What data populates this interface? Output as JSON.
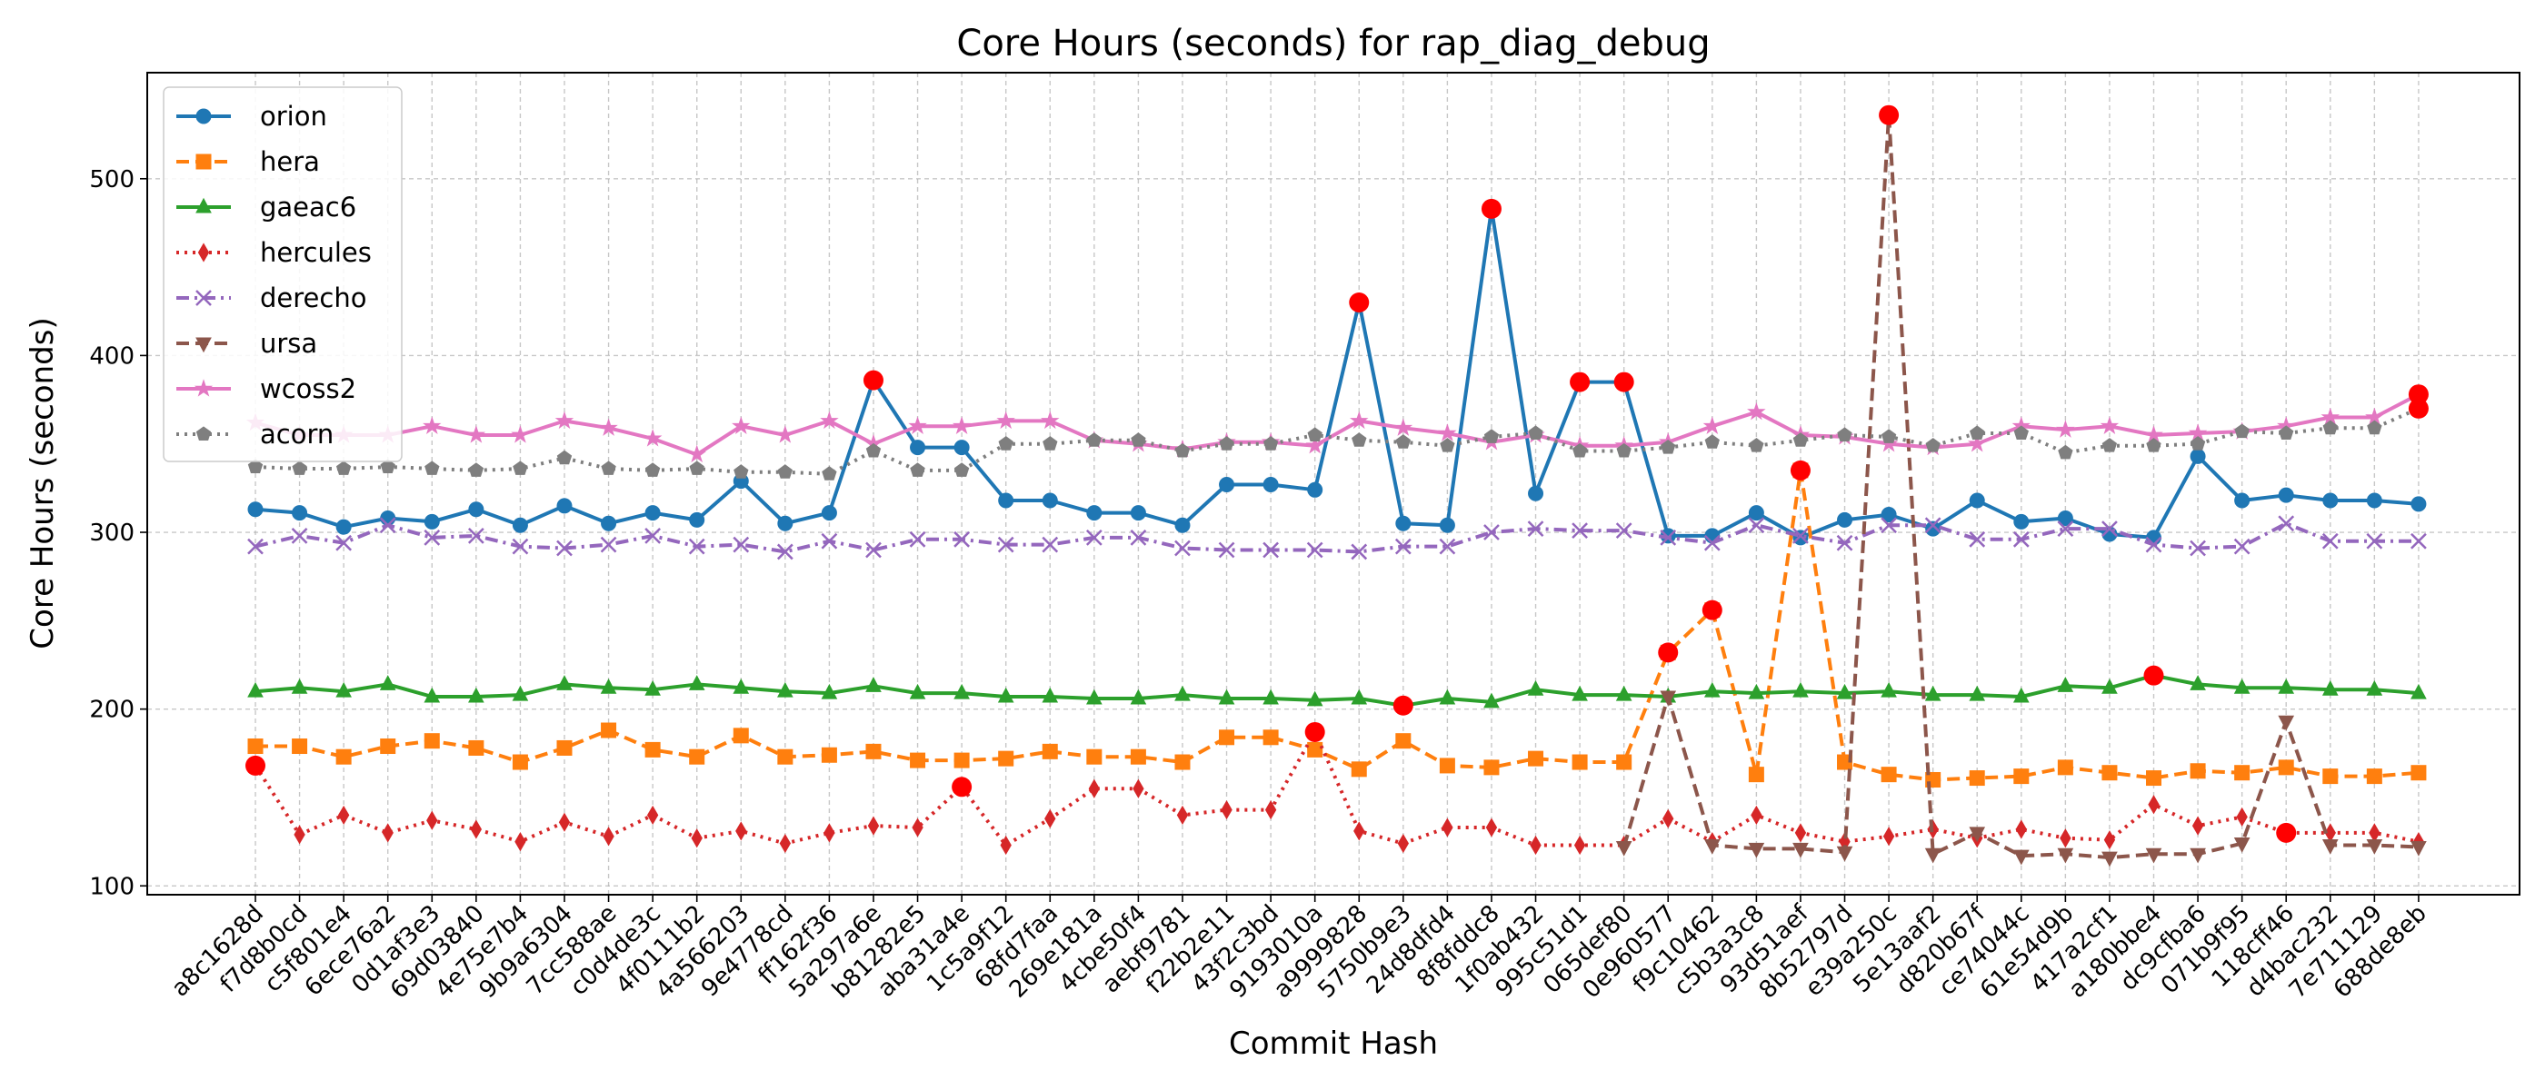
{
  "chart_data": {
    "type": "line",
    "title": "Core Hours (seconds) for rap_diag_debug",
    "xlabel": "Commit Hash",
    "ylabel": "Core Hours (seconds)",
    "ylim": [
      95,
      560
    ],
    "yticks": [
      100,
      200,
      300,
      400,
      500
    ],
    "grid": true,
    "legend_position": "top-left",
    "outlier_color": "#ff0000",
    "categories": [
      "a8c1628d",
      "f7d8b0cd",
      "c5f801e4",
      "6ece76a2",
      "0d1af3e3",
      "69d03840",
      "4e75e7b4",
      "9b9a6304",
      "7cc588ae",
      "c0d4de3c",
      "4f0111b2",
      "4a566203",
      "9e4778cd",
      "ff162f36",
      "5a297a6e",
      "b81282e5",
      "aba31a4e",
      "1c5a9f12",
      "68fd7faa",
      "269e181a",
      "4cbe50f4",
      "aebf9781",
      "f22b2e11",
      "43f2c3bd",
      "9193010a",
      "a9999828",
      "5750b9e3",
      "24d8dfd4",
      "8f8fddc8",
      "1f0ab432",
      "995c51d1",
      "065def80",
      "0e960577",
      "f9c10462",
      "c5b3a3c8",
      "93d51aef",
      "8b52797d",
      "e39a250c",
      "5e13aaf2",
      "d820b67f",
      "ce74044c",
      "61e54d9b",
      "417a2cf1",
      "a180bbe4",
      "dc9cfba6",
      "071b9f95",
      "118cff46",
      "d4bac232",
      "7e711129",
      "688de8eb"
    ],
    "series": [
      {
        "name": "orion",
        "color": "#1f77b4",
        "marker": "circle",
        "dash": "solid",
        "values": [
          313,
          311,
          303,
          308,
          306,
          313,
          304,
          315,
          305,
          311,
          307,
          329,
          305,
          311,
          386,
          348,
          348,
          318,
          318,
          311,
          311,
          304,
          327,
          327,
          324,
          430,
          305,
          304,
          483,
          322,
          385,
          385,
          298,
          298,
          311,
          297,
          307,
          310,
          302,
          318,
          306,
          308,
          299,
          297,
          343,
          318,
          321,
          318,
          318,
          316
        ],
        "outliers": [
          14,
          25,
          28,
          30,
          31
        ]
      },
      {
        "name": "hera",
        "color": "#ff7f0e",
        "marker": "square",
        "dash": "dashed",
        "values": [
          179,
          179,
          173,
          179,
          182,
          178,
          170,
          178,
          188,
          177,
          173,
          185,
          173,
          174,
          176,
          171,
          171,
          172,
          176,
          173,
          173,
          170,
          184,
          184,
          177,
          166,
          182,
          168,
          167,
          172,
          170,
          170,
          232,
          256,
          163,
          335,
          170,
          163,
          160,
          161,
          162,
          167,
          164,
          161,
          165,
          164,
          167,
          162,
          162,
          164
        ],
        "outliers": [
          32,
          33,
          35
        ]
      },
      {
        "name": "gaeac6",
        "color": "#2ca02c",
        "marker": "triangle-up",
        "dash": "solid",
        "values": [
          210,
          212,
          210,
          214,
          207,
          207,
          208,
          214,
          212,
          211,
          214,
          212,
          210,
          209,
          213,
          209,
          209,
          207,
          207,
          206,
          206,
          208,
          206,
          206,
          205,
          206,
          202,
          206,
          204,
          211,
          208,
          208,
          207,
          210,
          209,
          210,
          209,
          210,
          208,
          208,
          207,
          213,
          212,
          219,
          214,
          212,
          212,
          211,
          211,
          209
        ],
        "outliers": [
          26,
          43
        ]
      },
      {
        "name": "hercules",
        "color": "#d62728",
        "marker": "diamond",
        "dash": "dotted",
        "values": [
          168,
          129,
          140,
          130,
          137,
          132,
          125,
          136,
          128,
          140,
          127,
          131,
          124,
          130,
          134,
          133,
          156,
          123,
          138,
          155,
          155,
          140,
          143,
          143,
          187,
          131,
          124,
          133,
          133,
          123,
          123,
          123,
          138,
          125,
          140,
          130,
          125,
          128,
          132,
          127,
          132,
          127,
          126,
          146,
          134,
          139,
          130,
          130,
          130,
          125
        ],
        "outliers": [
          0,
          16,
          24,
          46
        ]
      },
      {
        "name": "derecho",
        "color": "#9467bd",
        "marker": "x",
        "dash": "dashdot",
        "values": [
          292,
          298,
          294,
          304,
          297,
          298,
          292,
          291,
          293,
          298,
          292,
          293,
          289,
          295,
          290,
          296,
          296,
          293,
          293,
          297,
          297,
          291,
          290,
          290,
          290,
          289,
          292,
          292,
          300,
          302,
          301,
          301,
          297,
          294,
          304,
          298,
          294,
          304,
          304,
          296,
          296,
          302,
          302,
          293,
          291,
          292,
          305,
          295,
          295,
          295
        ],
        "outliers": []
      },
      {
        "name": "ursa",
        "color": "#8c564b",
        "marker": "triangle-down",
        "dash": "dashed",
        "values": [
          null,
          null,
          null,
          null,
          null,
          null,
          null,
          null,
          null,
          null,
          null,
          null,
          null,
          null,
          null,
          null,
          null,
          null,
          null,
          null,
          null,
          null,
          null,
          null,
          null,
          null,
          null,
          null,
          null,
          null,
          null,
          122,
          207,
          123,
          121,
          121,
          119,
          536,
          118,
          130,
          117,
          118,
          116,
          118,
          118,
          124,
          193,
          123,
          123,
          122
        ],
        "outliers": [
          37
        ]
      },
      {
        "name": "wcoss2",
        "color": "#e377c2",
        "marker": "star",
        "dash": "solid",
        "values": [
          362,
          355,
          355,
          355,
          360,
          355,
          355,
          363,
          359,
          353,
          344,
          360,
          355,
          363,
          350,
          360,
          360,
          363,
          363,
          352,
          350,
          347,
          351,
          351,
          349,
          363,
          359,
          356,
          351,
          355,
          349,
          349,
          351,
          360,
          368,
          355,
          354,
          350,
          348,
          350,
          360,
          358,
          360,
          355,
          356,
          357,
          360,
          365,
          365,
          378
        ],
        "outliers": [
          49
        ]
      },
      {
        "name": "acorn",
        "color": "#7f7f7f",
        "marker": "pentagon",
        "dash": "dotted",
        "values": [
          337,
          336,
          336,
          337,
          336,
          335,
          336,
          342,
          336,
          335,
          336,
          334,
          334,
          333,
          346,
          335,
          335,
          350,
          350,
          352,
          352,
          346,
          350,
          350,
          355,
          352,
          351,
          349,
          354,
          356,
          346,
          346,
          348,
          351,
          349,
          352,
          355,
          354,
          349,
          356,
          356,
          345,
          349,
          349,
          350,
          357,
          356,
          359,
          359,
          370
        ],
        "outliers": [
          49
        ]
      }
    ]
  }
}
